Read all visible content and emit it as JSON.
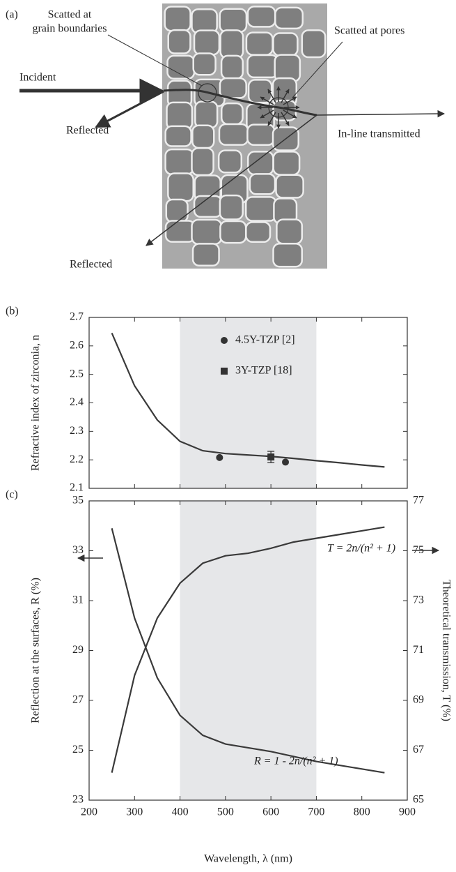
{
  "diagram": {
    "panel_label": "(a)",
    "grain_label": [
      "Scatted at",
      "grain boundaries"
    ],
    "incident": "Incident",
    "reflected_front": "Reflected",
    "pores_label": "Scatted at pores",
    "transmitted": "In-line transmitted",
    "reflected_back": "Reflected"
  },
  "chart_data": [
    {
      "type": "line",
      "panel_label": "(b)",
      "ylabel": "Refractive index of zirconia, n",
      "xlim": [
        200,
        900
      ],
      "xticks": [
        200,
        300,
        400,
        500,
        600,
        700,
        800,
        900
      ],
      "ylim": [
        2.1,
        2.7
      ],
      "yticks": [
        2.1,
        2.2,
        2.3,
        2.4,
        2.5,
        2.6,
        2.7
      ],
      "highlight": [
        400,
        700
      ],
      "highlight_color": "#e6e7e9",
      "legend": "upper right",
      "series": [
        {
          "color": "#3a3a3a",
          "x": [
            250,
            300,
            350,
            400,
            450,
            500,
            550,
            600,
            650,
            700,
            750,
            800,
            850
          ],
          "values": [
            2.645,
            2.46,
            2.34,
            2.265,
            2.232,
            2.222,
            2.217,
            2.212,
            2.205,
            2.197,
            2.19,
            2.182,
            2.175
          ]
        }
      ],
      "points": [
        {
          "name": "4.5Y-TZP [2]",
          "marker": "circle",
          "color": "#333333",
          "x": [
            487,
            632
          ],
          "values": [
            2.208,
            2.192
          ]
        },
        {
          "name": "3Y-TZP [18]",
          "marker": "square",
          "color": "#333333",
          "x": [
            600
          ],
          "values": [
            2.21
          ],
          "errors": [
            0.02
          ]
        }
      ]
    },
    {
      "type": "line",
      "panel_label": "(c)",
      "xlabel": "Wavelength, λ (nm)",
      "ylabel": "Reflection at the surfaces, R (%)",
      "y2label": "Theoretical transmission, T (%)",
      "xlim": [
        200,
        900
      ],
      "xticks": [
        200,
        300,
        400,
        500,
        600,
        700,
        800,
        900
      ],
      "ylim": [
        23,
        35
      ],
      "yticks": [
        23,
        25,
        27,
        29,
        31,
        33,
        35
      ],
      "y2lim": [
        65,
        77
      ],
      "y2ticks": [
        65,
        67,
        69,
        71,
        73,
        75,
        77
      ],
      "highlight": [
        400,
        700
      ],
      "highlight_color": "#e6e7e9",
      "series": [
        {
          "color": "#3a3a3a",
          "x": [
            250,
            300,
            350,
            400,
            450,
            500,
            550,
            600,
            650,
            700,
            750,
            800,
            850
          ],
          "values": [
            33.9,
            30.3,
            27.9,
            26.4,
            25.6,
            25.25,
            25.1,
            24.95,
            24.75,
            24.55,
            24.4,
            24.25,
            24.1
          ]
        },
        {
          "color": "#3a3a3a",
          "axis": "y2",
          "x": [
            250,
            300,
            350,
            400,
            450,
            500,
            550,
            600,
            650,
            700,
            750,
            800,
            850
          ],
          "values": [
            66.1,
            70.0,
            72.3,
            73.7,
            74.5,
            74.8,
            74.9,
            75.1,
            75.35,
            75.5,
            75.65,
            75.8,
            75.95
          ]
        }
      ],
      "annotations": [
        "T = 2n/(n² + 1)",
        "R = 1 - 2n/(n² + 1)"
      ]
    }
  ]
}
